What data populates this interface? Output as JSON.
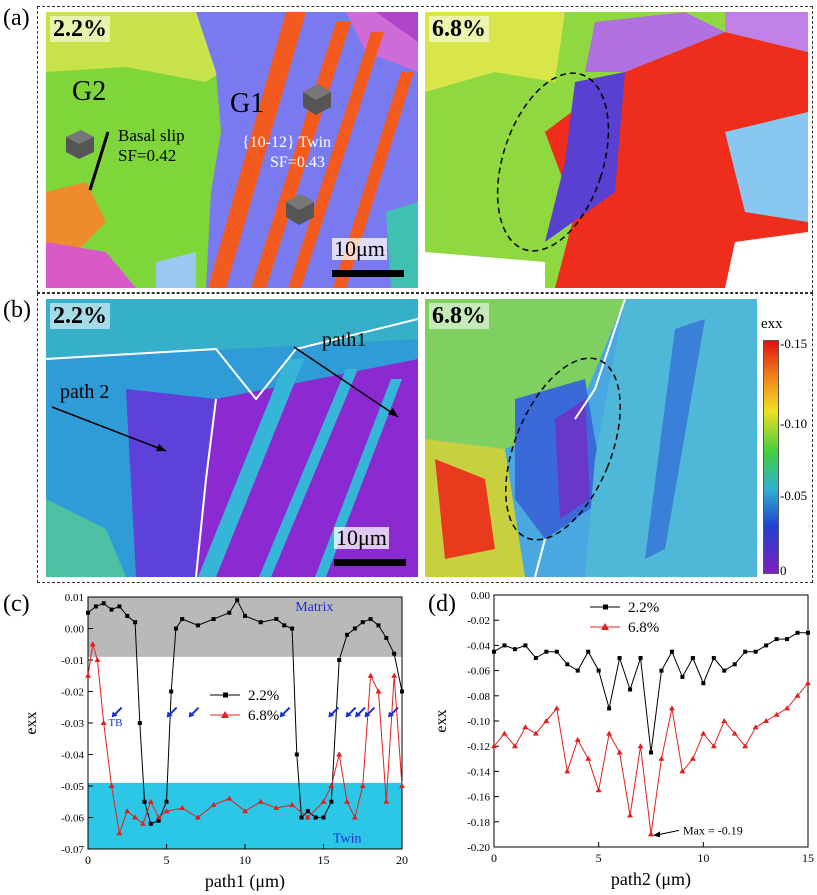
{
  "panels": {
    "a": {
      "letter": "(a)",
      "left_strain": "2.2%",
      "right_strain": "6.8%",
      "grain1": "G1",
      "grain2": "G2",
      "basal_slip": "Basal slip",
      "basal_sf": "SF=0.42",
      "twin_label": "{10-12} Twin",
      "twin_sf": "SF=0.43",
      "scale": "10μm"
    },
    "b": {
      "letter": "(b)",
      "left_strain": "2.2%",
      "right_strain": "6.8%",
      "path1": "path1",
      "path2": "path 2",
      "scale": "10μm",
      "colorbar_title": "exx",
      "colorbar_ticks": [
        "-0.15",
        "-0.10",
        "-0.05",
        "0"
      ]
    },
    "c": {
      "letter": "(c)",
      "matrix_label": "Matrix",
      "twin_label": "Twin",
      "tb_label": "TB"
    },
    "d": {
      "letter": "(d)",
      "max_label": "Max = -0.19"
    }
  },
  "chart_data": [
    {
      "type": "line",
      "xlabel": "path1 (μm)",
      "ylabel": "exx",
      "xlim": [
        0,
        20
      ],
      "ylim": [
        -0.07,
        0.01
      ],
      "xticks": [
        "0",
        "5",
        "10",
        "15",
        "20"
      ],
      "yticks": [
        "0.01",
        "0.00",
        "-0.01",
        "-0.02",
        "-0.03",
        "-0.04",
        "-0.05",
        "-0.06",
        "-0.07"
      ],
      "legend_position": "center-right",
      "series": [
        {
          "name": "2.2%",
          "color": "#000000",
          "marker": "square",
          "x": [
            0,
            0.5,
            1,
            1.5,
            2,
            2.5,
            3,
            3.3,
            3.6,
            4,
            4.5,
            5,
            5.3,
            5.6,
            6,
            7,
            8,
            9,
            9.5,
            10,
            11,
            12,
            12.5,
            13,
            13.3,
            13.6,
            14,
            14.5,
            15,
            15.5,
            16,
            16.5,
            17,
            17.5,
            18,
            18.5,
            19,
            19.5,
            20
          ],
          "y": [
            0.005,
            0.007,
            0.008,
            0.006,
            0.007,
            0.004,
            0.002,
            -0.03,
            -0.055,
            -0.062,
            -0.061,
            -0.055,
            -0.02,
            0.0,
            0.003,
            0.001,
            0.003,
            0.005,
            0.009,
            0.004,
            0.002,
            0.003,
            0.001,
            0.0,
            -0.04,
            -0.06,
            -0.058,
            -0.06,
            -0.06,
            -0.055,
            -0.01,
            -0.002,
            0.0,
            0.002,
            0.003,
            0.001,
            -0.003,
            -0.008,
            -0.02
          ]
        },
        {
          "name": "6.8%",
          "color": "#e02020",
          "marker": "triangle",
          "x": [
            0,
            0.3,
            0.6,
            1,
            1.5,
            2,
            2.5,
            3,
            3.5,
            4,
            4.5,
            5,
            6,
            7,
            8,
            9,
            10,
            11,
            12,
            13,
            14,
            15,
            15.5,
            16,
            16.5,
            17,
            17.5,
            18,
            18.5,
            19,
            19.5,
            20
          ],
          "y": [
            -0.015,
            -0.005,
            -0.01,
            -0.03,
            -0.05,
            -0.065,
            -0.058,
            -0.06,
            -0.062,
            -0.055,
            -0.06,
            -0.058,
            -0.057,
            -0.06,
            -0.056,
            -0.054,
            -0.058,
            -0.055,
            -0.057,
            -0.056,
            -0.06,
            -0.055,
            -0.05,
            -0.04,
            -0.055,
            -0.06,
            -0.05,
            -0.015,
            -0.02,
            -0.055,
            -0.015,
            -0.05
          ]
        }
      ],
      "bands": [
        {
          "label": "Matrix",
          "y_range": [
            -0.009,
            0.01
          ],
          "color": "#b9b9b9"
        },
        {
          "label": "Twin",
          "y_range": [
            -0.07,
            -0.049
          ],
          "color": "#2cc6e6"
        }
      ]
    },
    {
      "type": "line",
      "xlabel": "path2 (μm)",
      "ylabel": "exx",
      "xlim": [
        0,
        15
      ],
      "ylim": [
        -0.2,
        0.0
      ],
      "xticks": [
        "0",
        "5",
        "10",
        "15"
      ],
      "yticks": [
        "0.00",
        "-0.02",
        "-0.04",
        "-0.06",
        "-0.08",
        "-0.10",
        "-0.12",
        "-0.14",
        "-0.16",
        "-0.18",
        "-0.20"
      ],
      "legend_position": "top-left",
      "series": [
        {
          "name": "2.2%",
          "color": "#000000",
          "marker": "square",
          "x": [
            0,
            0.5,
            1,
            1.5,
            2,
            2.5,
            3,
            3.5,
            4,
            4.5,
            5,
            5.5,
            6,
            6.5,
            7,
            7.5,
            8,
            8.5,
            9,
            9.5,
            10,
            10.5,
            11,
            11.5,
            12,
            12.5,
            13,
            13.5,
            14,
            14.5,
            15
          ],
          "y": [
            -0.045,
            -0.04,
            -0.043,
            -0.04,
            -0.05,
            -0.045,
            -0.045,
            -0.055,
            -0.06,
            -0.045,
            -0.06,
            -0.09,
            -0.05,
            -0.075,
            -0.05,
            -0.125,
            -0.06,
            -0.045,
            -0.065,
            -0.05,
            -0.07,
            -0.05,
            -0.06,
            -0.055,
            -0.045,
            -0.045,
            -0.04,
            -0.035,
            -0.035,
            -0.03,
            -0.03
          ]
        },
        {
          "name": "6.8%",
          "color": "#e02020",
          "marker": "triangle",
          "x": [
            0,
            0.5,
            1,
            1.5,
            2,
            2.5,
            3,
            3.5,
            4,
            4.5,
            5,
            5.5,
            6,
            6.5,
            7,
            7.5,
            8,
            8.5,
            9,
            9.5,
            10,
            10.5,
            11,
            11.5,
            12,
            12.5,
            13,
            13.5,
            14,
            14.5,
            15
          ],
          "y": [
            -0.12,
            -0.11,
            -0.12,
            -0.105,
            -0.11,
            -0.1,
            -0.09,
            -0.14,
            -0.115,
            -0.13,
            -0.155,
            -0.11,
            -0.125,
            -0.175,
            -0.12,
            -0.19,
            -0.13,
            -0.09,
            -0.14,
            -0.13,
            -0.11,
            -0.12,
            -0.1,
            -0.11,
            -0.12,
            -0.105,
            -0.1,
            -0.095,
            -0.09,
            -0.08,
            -0.07
          ]
        }
      ],
      "annotations": [
        {
          "text": "Max = -0.19",
          "x": 7.5,
          "y": -0.19
        }
      ]
    }
  ]
}
